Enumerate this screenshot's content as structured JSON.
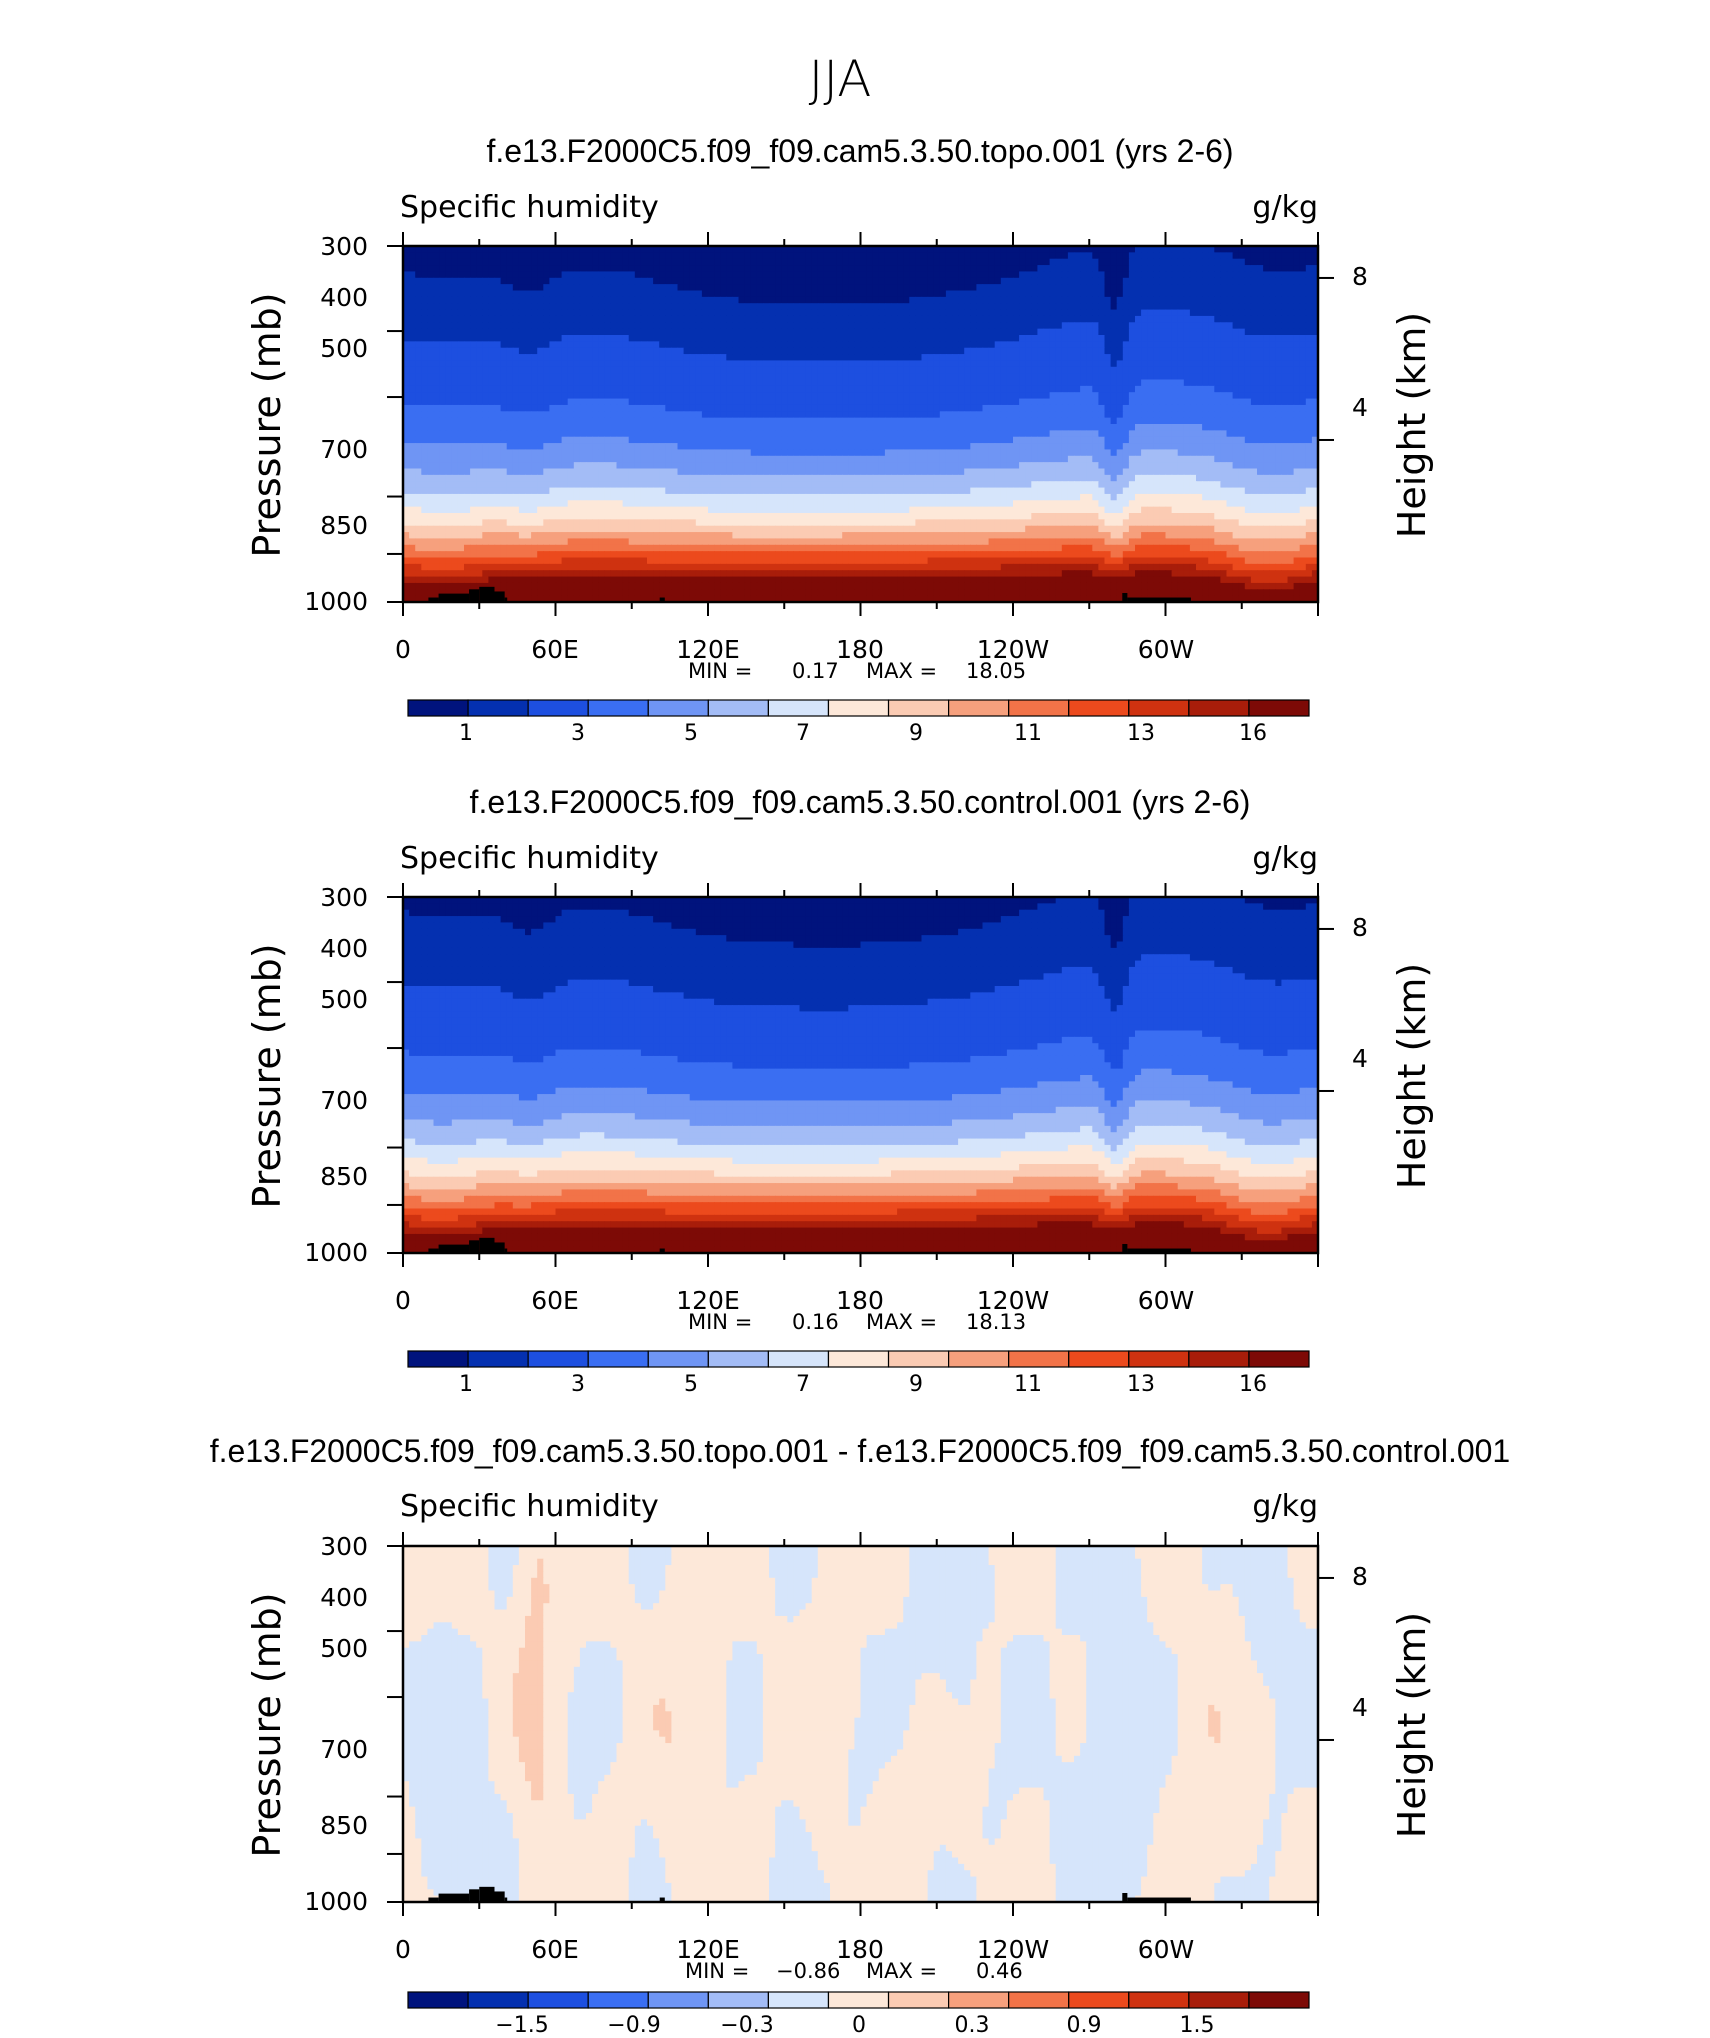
{
  "figure_title": "JJA",
  "colors": {
    "humidity_palette": [
      "#00137d",
      "#0430b0",
      "#1d4fe0",
      "#3a6ef2",
      "#6f95f4",
      "#a3bcf6",
      "#d6e5fb",
      "#fde8d9",
      "#fbcbb3",
      "#f6a07d",
      "#f27348",
      "#ec4a1d",
      "#cf3210",
      "#a81d0a",
      "#7d0a06"
    ],
    "diff_palette": [
      "#00137d",
      "#0430b0",
      "#1d4fe0",
      "#3a6ef2",
      "#6f95f4",
      "#a3bcf6",
      "#d6e5fb",
      "#fde8d9",
      "#fbcbb3",
      "#f6a07d",
      "#f27348",
      "#ec4a1d",
      "#cf3210",
      "#a81d0a",
      "#7d0a06"
    ],
    "terrain": "#000000"
  },
  "chart_data": [
    {
      "type": "heatmap",
      "title": "f.e13.F2000C5.f09_f09.cam5.3.50.topo.001 (yrs 2-6)",
      "left_string": "Specific humidity",
      "right_string": "g/kg",
      "ylabel": "Pressure (mb)",
      "ylabel_right": "Height (km)",
      "xticks": [
        "0",
        "60E",
        "120E",
        "180",
        "120W",
        "60W"
      ],
      "xlim": [
        0,
        360
      ],
      "yticks": [
        "300",
        "400",
        "500",
        "700",
        "850",
        "1000"
      ],
      "ylim": [
        1000,
        300
      ],
      "y_log_scale": true,
      "yticks_right": [
        "8",
        "4"
      ],
      "min_label": "MIN =",
      "min": "0.17",
      "max_label": "MAX =",
      "max": "18.05",
      "colorbar_labels": [
        "1",
        "3",
        "5",
        "7",
        "9",
        "11",
        "13",
        "16"
      ],
      "colorbar_levels": [
        0.5,
        1,
        2,
        3,
        4,
        5,
        6,
        7,
        8,
        9,
        10,
        11,
        12,
        13,
        16
      ]
    },
    {
      "type": "heatmap",
      "title": "f.e13.F2000C5.f09_f09.cam5.3.50.control.001 (yrs 2-6)",
      "left_string": "Specific humidity",
      "right_string": "g/kg",
      "ylabel": "Pressure (mb)",
      "ylabel_right": "Height (km)",
      "xticks": [
        "0",
        "60E",
        "120E",
        "180",
        "120W",
        "60W"
      ],
      "xlim": [
        0,
        360
      ],
      "yticks": [
        "300",
        "400",
        "500",
        "700",
        "850",
        "1000"
      ],
      "ylim": [
        1000,
        300
      ],
      "y_log_scale": true,
      "yticks_right": [
        "8",
        "4"
      ],
      "min_label": "MIN =",
      "min": "0.16",
      "max_label": "MAX =",
      "max": "18.13",
      "colorbar_labels": [
        "1",
        "3",
        "5",
        "7",
        "9",
        "11",
        "13",
        "16"
      ],
      "colorbar_levels": [
        0.5,
        1,
        2,
        3,
        4,
        5,
        6,
        7,
        8,
        9,
        10,
        11,
        12,
        13,
        16
      ]
    },
    {
      "type": "heatmap",
      "title": "f.e13.F2000C5.f09_f09.cam5.3.50.topo.001 - f.e13.F2000C5.f09_f09.cam5.3.50.control.001",
      "left_string": "Specific humidity",
      "right_string": "g/kg",
      "ylabel": "Pressure (mb)",
      "ylabel_right": "Height (km)",
      "xticks": [
        "0",
        "60E",
        "120E",
        "180",
        "120W",
        "60W"
      ],
      "xlim": [
        0,
        360
      ],
      "yticks": [
        "300",
        "400",
        "500",
        "700",
        "850",
        "1000"
      ],
      "ylim": [
        1000,
        300
      ],
      "y_log_scale": true,
      "yticks_right": [
        "8",
        "4"
      ],
      "min_label": "MIN =",
      "min": "−0.86",
      "max_label": "MAX =",
      "max": "0.46",
      "colorbar_labels": [
        "−1.5",
        "−0.9",
        "−0.3",
        "0",
        "0.3",
        "0.9",
        "1.5"
      ],
      "colorbar_levels": [
        -1.8,
        -1.5,
        -1.2,
        -0.9,
        -0.6,
        -0.3,
        0,
        0.3,
        0.6,
        0.9,
        1.2,
        1.5,
        1.8,
        2.1,
        2.4
      ]
    }
  ]
}
